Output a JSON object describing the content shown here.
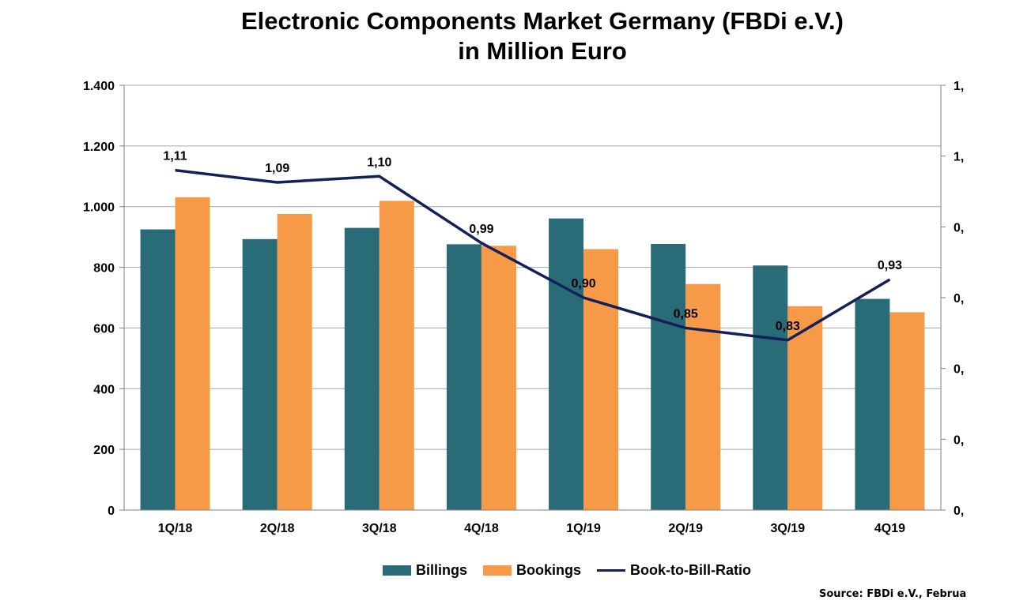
{
  "chart_data": {
    "type": "bar",
    "title_lines": [
      "Electronic Components Market Germany (FBDi e.V.)",
      "in Million Euro"
    ],
    "categories": [
      "1Q/18",
      "2Q/18",
      "3Q/18",
      "4Q/18",
      "1Q/19",
      "2Q/19",
      "3Q/19",
      "4Q19"
    ],
    "series": [
      {
        "name": "Billings",
        "type": "bar",
        "color": "#2a6b78",
        "values": [
          925,
          893,
          930,
          876,
          961,
          877,
          806,
          696
        ]
      },
      {
        "name": "Bookings",
        "type": "bar",
        "color": "#f69a47",
        "values": [
          1031,
          976,
          1019,
          871,
          860,
          745,
          672,
          652
        ]
      },
      {
        "name": "Book-to-Bill-Ratio",
        "type": "line",
        "axis": "right",
        "color": "#14205a",
        "values": [
          1.11,
          1.09,
          1.1,
          0.99,
          0.9,
          0.85,
          0.83,
          0.93
        ],
        "labels": [
          "1,11",
          "1,09",
          "1,10",
          "0,99",
          "0,90",
          "0,85",
          "0,83",
          "0,93"
        ]
      }
    ],
    "ylim": [
      0,
      1400
    ],
    "y_ticks": [
      0,
      200,
      400,
      600,
      800,
      1000,
      1200,
      1400
    ],
    "y_tick_labels": [
      "0",
      "200",
      "400",
      "600",
      "800",
      "1.000",
      "1.200",
      "1.400"
    ],
    "y2lim": [
      0.55,
      1.25
    ],
    "y2_tick_labels": [
      "1,",
      "1,",
      "0,",
      "0,",
      "0,",
      "0,",
      "0,"
    ],
    "grid": true,
    "legend_position": "bottom",
    "source_note": "Source: FBDi e.V., Februa"
  }
}
